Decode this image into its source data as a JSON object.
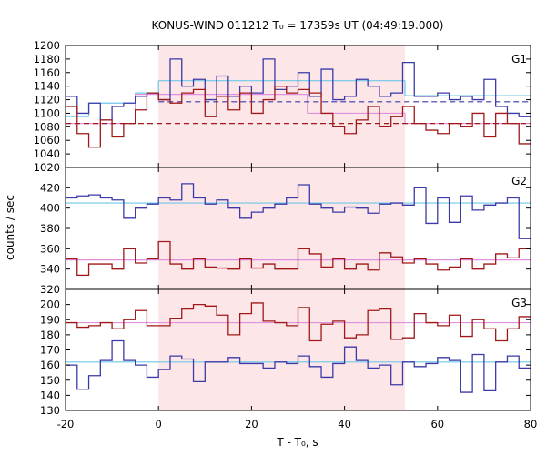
{
  "chart_data": {
    "type": "line",
    "title": "KONUS-WIND 011212 T₀ = 17359s UT (04:49:19.000)",
    "xlabel": "T - T₀, s",
    "ylabel": "counts / sec",
    "xlim": [
      -20,
      80
    ],
    "x_ticks": [
      -20,
      0,
      20,
      40,
      60,
      80
    ],
    "grid": false,
    "highlight_interval": [
      0,
      53
    ],
    "colors": {
      "blue": "#3a3aa8",
      "red": "#a01818",
      "cyan": "#6ec8e8",
      "pink": "#e090e0",
      "highlight": "#fde6e8"
    },
    "bin_edges": [
      -20,
      -17.5,
      -15,
      -12.5,
      -10,
      -7.5,
      -5,
      -2.5,
      0,
      2.5,
      5,
      7.5,
      10,
      12.5,
      15,
      17.5,
      20,
      22.5,
      25,
      27.5,
      30,
      32.5,
      35,
      37.5,
      40,
      42.5,
      45,
      47.5,
      50,
      52.5,
      55,
      57.5,
      60,
      62.5,
      65,
      67.5,
      70,
      72.5,
      75,
      77.5,
      80
    ],
    "panels": [
      {
        "label": "G1",
        "ylim": [
          1020,
          1200
        ],
        "y_ticks": [
          1020,
          1040,
          1060,
          1080,
          1100,
          1120,
          1140,
          1160,
          1180,
          1200
        ],
        "series": [
          {
            "color": "blue",
            "values": [
              1125,
              1100,
              1115,
              1090,
              1110,
              1115,
              1125,
              1130,
              1120,
              1180,
              1140,
              1150,
              1120,
              1155,
              1125,
              1140,
              1130,
              1180,
              1135,
              1140,
              1160,
              1125,
              1165,
              1120,
              1125,
              1150,
              1140,
              1125,
              1130,
              1175,
              1125,
              1125,
              1130,
              1120,
              1125,
              1120,
              1150,
              1110,
              1100,
              1095
            ]
          },
          {
            "color": "red",
            "values": [
              1110,
              1070,
              1050,
              1090,
              1065,
              1085,
              1105,
              1130,
              1120,
              1115,
              1130,
              1135,
              1095,
              1125,
              1105,
              1130,
              1100,
              1120,
              1140,
              1130,
              1135,
              1130,
              1100,
              1080,
              1070,
              1090,
              1110,
              1080,
              1095,
              1110,
              1085,
              1075,
              1070,
              1085,
              1080,
              1100,
              1065,
              1100,
              1085,
              1055
            ]
          }
        ],
        "levels": [
          {
            "color": "cyan",
            "style": "solid",
            "segments": [
              {
                "x": [
                  -20,
                  -15
                ],
                "y": 1095
              },
              {
                "x": [
                  -15,
                  -5
                ],
                "y": 1115
              },
              {
                "x": [
                  -5,
                  0
                ],
                "y": 1130
              },
              {
                "x": [
                  0,
                  53
                ],
                "y": 1148
              },
              {
                "x": [
                  53,
                  80
                ],
                "y": 1126
              }
            ]
          },
          {
            "color": "pink",
            "style": "solid",
            "segments": [
              {
                "x": [
                  -20,
                  -5
                ],
                "y": 1085
              },
              {
                "x": [
                  -5,
                  32
                ],
                "y": 1128
              },
              {
                "x": [
                  32,
                  53
                ],
                "y": 1100
              },
              {
                "x": [
                  53,
                  80
                ],
                "y": 1085
              }
            ]
          },
          {
            "color": "blue",
            "style": "dashed",
            "segments": [
              {
                "x": [
                  0,
                  80
                ],
                "y": 1117
              }
            ]
          },
          {
            "color": "red",
            "style": "dashed",
            "segments": [
              {
                "x": [
                  -20,
                  80
                ],
                "y": 1085
              }
            ]
          }
        ]
      },
      {
        "label": "G2",
        "ylim": [
          320,
          440
        ],
        "y_ticks": [
          320,
          340,
          360,
          380,
          400,
          420
        ],
        "series": [
          {
            "color": "blue",
            "values": [
              410,
              412,
              413,
              410,
              408,
              390,
              400,
              404,
              410,
              408,
              424,
              410,
              404,
              408,
              400,
              390,
              396,
              400,
              404,
              410,
              423,
              404,
              400,
              396,
              401,
              400,
              395,
              404,
              405,
              403,
              420,
              385,
              410,
              386,
              412,
              398,
              403,
              405,
              410,
              370
            ]
          },
          {
            "color": "red",
            "values": [
              350,
              334,
              345,
              345,
              340,
              360,
              346,
              350,
              367,
              345,
              340,
              350,
              342,
              341,
              340,
              350,
              341,
              345,
              340,
              340,
              360,
              355,
              342,
              350,
              340,
              345,
              339,
              356,
              352,
              346,
              350,
              345,
              339,
              342,
              350,
              340,
              345,
              355,
              351,
              360
            ]
          }
        ],
        "levels": [
          {
            "color": "cyan",
            "style": "solid",
            "segments": [
              {
                "x": [
                  -20,
                  80
                ],
                "y": 405
              }
            ]
          },
          {
            "color": "pink",
            "style": "solid",
            "segments": [
              {
                "x": [
                  -20,
                  80
                ],
                "y": 349
              }
            ]
          }
        ]
      },
      {
        "label": "G3",
        "ylim": [
          130,
          210
        ],
        "y_ticks": [
          130,
          140,
          150,
          160,
          170,
          180,
          190,
          200
        ],
        "series": [
          {
            "color": "blue",
            "values": [
              160,
              144,
              153,
              163,
              176,
              163,
              160,
              152,
              157,
              166,
              164,
              149,
              162,
              162,
              165,
              161,
              161,
              158,
              162,
              161,
              166,
              159,
              152,
              161,
              172,
              163,
              158,
              160,
              147,
              162,
              159,
              161,
              165,
              163,
              142,
              167,
              143,
              162,
              166,
              158
            ]
          },
          {
            "color": "red",
            "values": [
              188,
              185,
              186,
              188,
              184,
              190,
              196,
              186,
              186,
              191,
              197,
              200,
              199,
              193,
              180,
              194,
              201,
              189,
              188,
              186,
              198,
              176,
              187,
              189,
              178,
              180,
              196,
              197,
              177,
              178,
              194,
              188,
              186,
              193,
              179,
              190,
              184,
              176,
              184,
              192
            ]
          }
        ],
        "levels": [
          {
            "color": "cyan",
            "style": "solid",
            "segments": [
              {
                "x": [
                  -20,
                  80
                ],
                "y": 162
              }
            ]
          },
          {
            "color": "pink",
            "style": "solid",
            "segments": [
              {
                "x": [
                  -20,
                  80
                ],
                "y": 188
              }
            ]
          }
        ]
      }
    ]
  }
}
